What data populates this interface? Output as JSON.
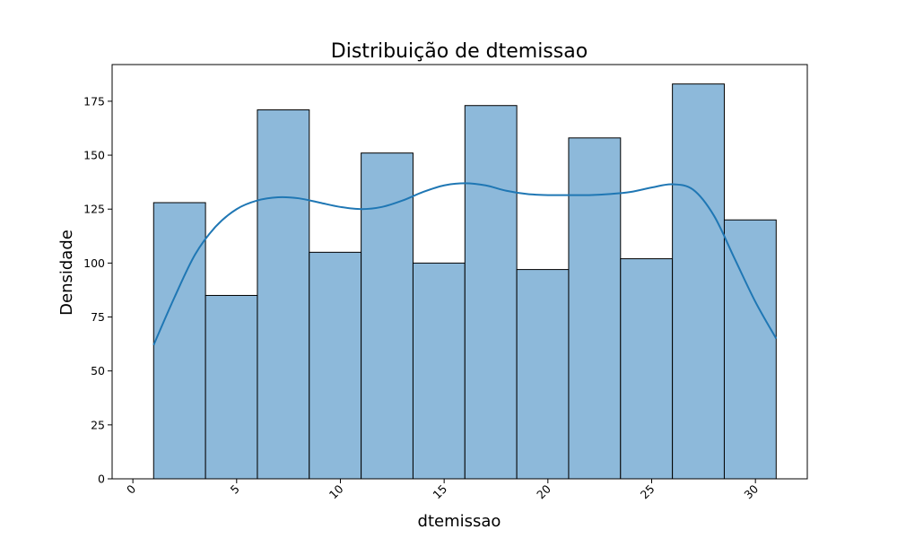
{
  "chart_data": {
    "type": "bar",
    "title": "Distribuição de dtemissao",
    "xlabel": "dtemissao",
    "ylabel": "Densidade",
    "xlim": [
      -1.0,
      32.5
    ],
    "ylim": [
      0,
      192
    ],
    "xticks": [
      0,
      5,
      10,
      15,
      20,
      25,
      30
    ],
    "yticks": [
      0,
      25,
      50,
      75,
      100,
      125,
      150,
      175
    ],
    "bins": [
      {
        "x0": 1.0,
        "x1": 3.5,
        "value": 128
      },
      {
        "x0": 3.5,
        "x1": 6.0,
        "value": 85
      },
      {
        "x0": 6.0,
        "x1": 8.5,
        "value": 171
      },
      {
        "x0": 8.5,
        "x1": 11.0,
        "value": 105
      },
      {
        "x0": 11.0,
        "x1": 13.5,
        "value": 151
      },
      {
        "x0": 13.5,
        "x1": 16.0,
        "value": 100
      },
      {
        "x0": 16.0,
        "x1": 18.5,
        "value": 173
      },
      {
        "x0": 18.5,
        "x1": 21.0,
        "value": 97
      },
      {
        "x0": 21.0,
        "x1": 23.5,
        "value": 158
      },
      {
        "x0": 23.5,
        "x1": 26.0,
        "value": 102
      },
      {
        "x0": 26.0,
        "x1": 28.5,
        "value": 183
      },
      {
        "x0": 28.5,
        "x1": 31.0,
        "value": 120
      }
    ],
    "kde": {
      "x": [
        1,
        2,
        3,
        4,
        5,
        6,
        7,
        8,
        9,
        10,
        11,
        12,
        13,
        14,
        15,
        16,
        17,
        18,
        19,
        20,
        21,
        22,
        23,
        24,
        25,
        26,
        27,
        28,
        29,
        30,
        31
      ],
      "y": [
        62,
        84,
        104,
        117,
        125,
        129,
        130.5,
        130,
        128,
        126,
        125,
        126,
        129,
        133,
        136,
        137,
        136,
        133.5,
        132,
        131.5,
        131.5,
        131.5,
        132,
        133,
        135,
        136.5,
        134,
        122,
        102,
        82,
        65
      ]
    },
    "bar_color": "#8db9da",
    "bar_edge_color": "#000000",
    "line_color": "#1f77b4",
    "grid": false
  }
}
